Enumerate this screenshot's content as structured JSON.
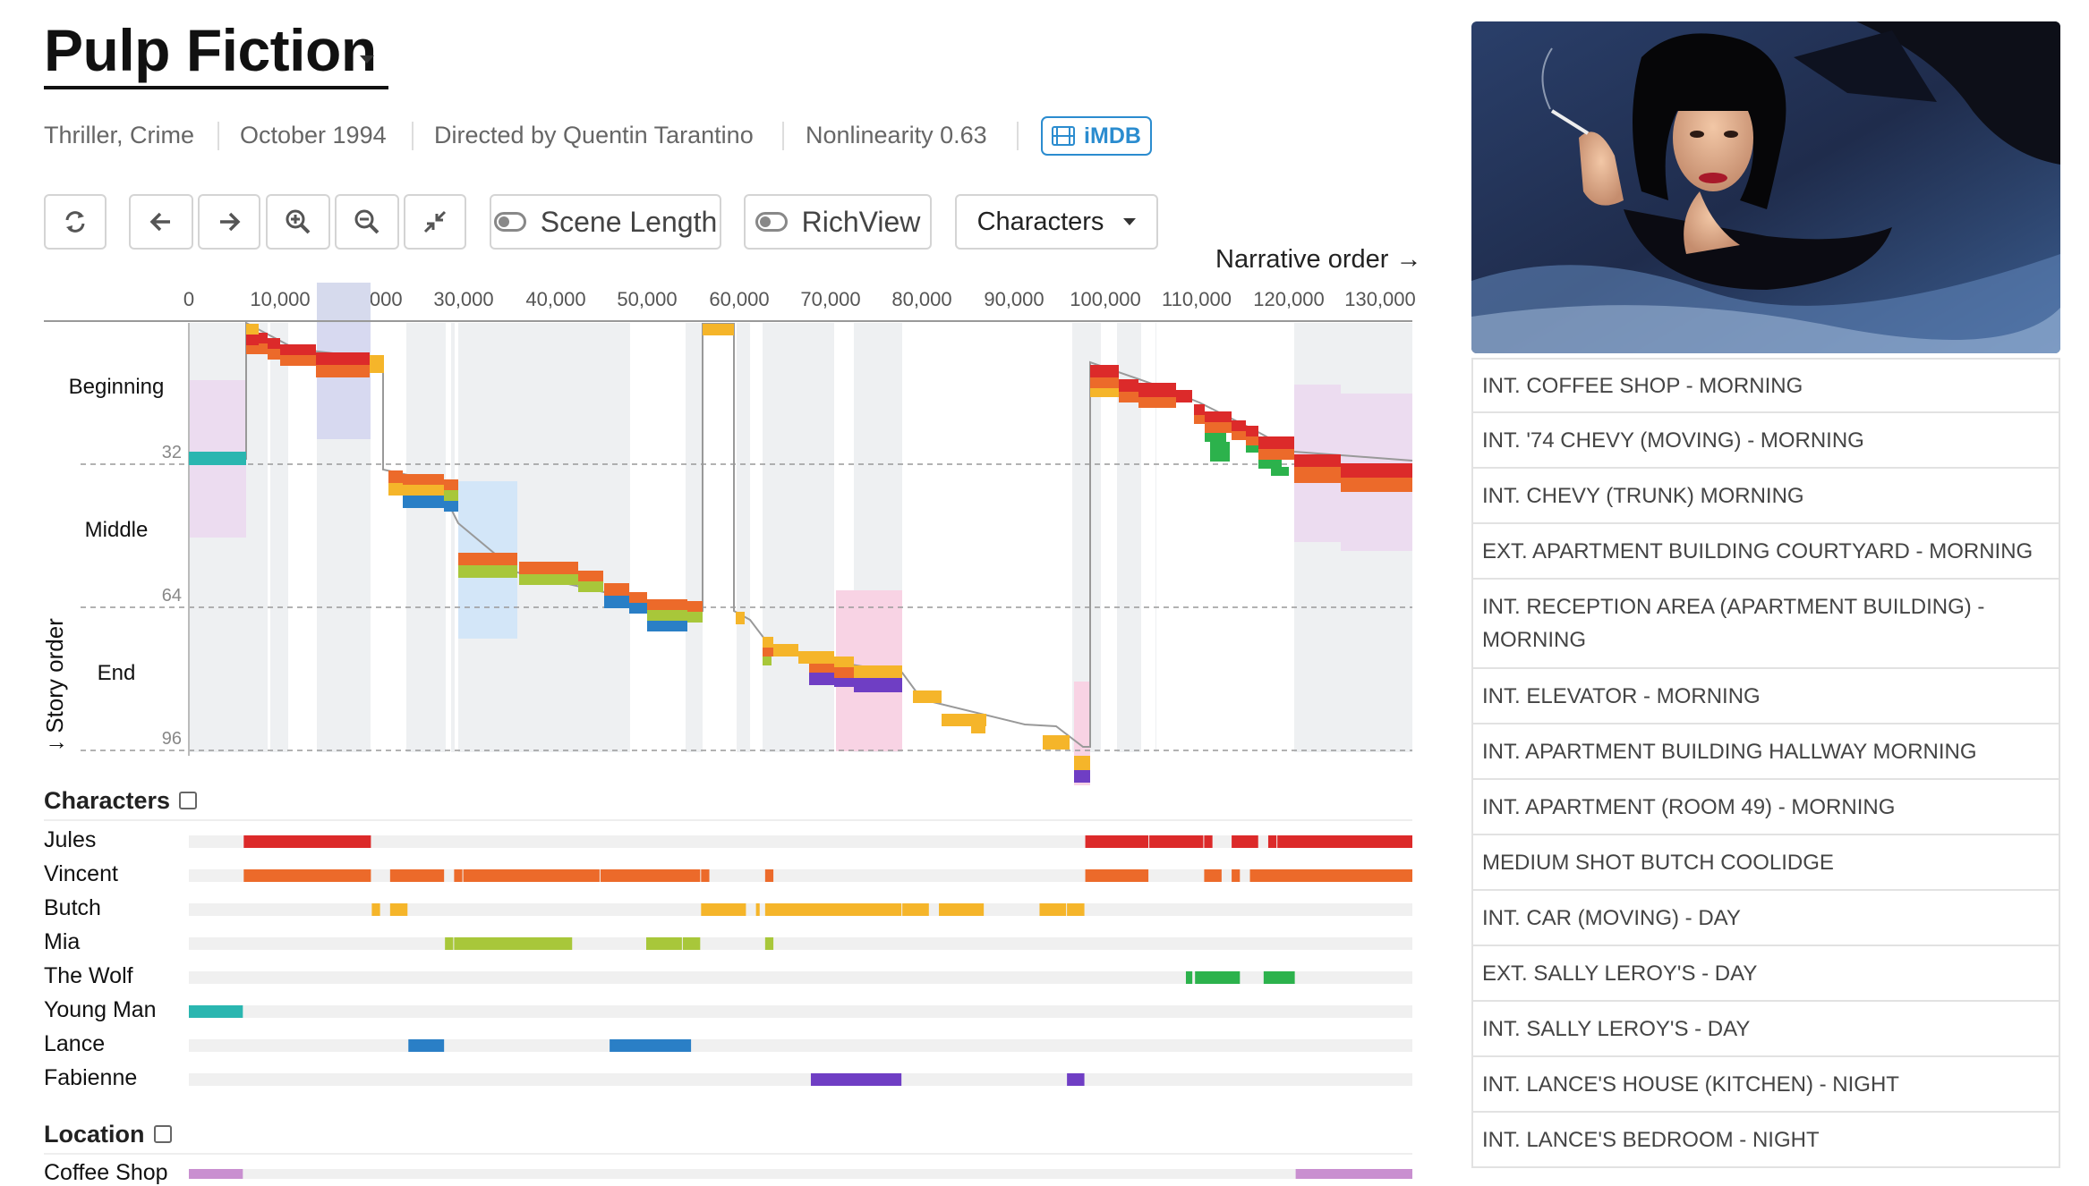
{
  "movie": {
    "title": "Pulp Fiction",
    "genres": "Thriller, Crime",
    "release": "October 1994",
    "director": "Directed by Quentin Tarantino",
    "nonlinearity": "Nonlinearity 0.63",
    "imdb_label": "iMDB"
  },
  "toolbar": {
    "scene_length_label": "Scene Length",
    "richview_label": "RichView",
    "characters_label": "Characters",
    "narrative_order_label": "Narrative order →"
  },
  "colors": {
    "Jules": "#dc2a2a",
    "Vincent": "#ec6a2a",
    "Butch": "#f5b52a",
    "Mia": "#a8c73a",
    "The Wolf": "#2cb24c",
    "Young Man": "#2ab6b0",
    "Lance": "#2a7fc6",
    "Fabienne": "#6f3ec4",
    "Coffee Shop": "#c98fd0"
  },
  "chart": {
    "x_ticks": [
      "0",
      "10,000",
      "20,000",
      "30,000",
      "40,000",
      "50,000",
      "60,000",
      "70,000",
      "80,000",
      "90,000",
      "100,000",
      "110,000",
      "120,000",
      "130,000"
    ],
    "y_ticks": [
      "32",
      "64",
      "96"
    ],
    "sections": [
      "Beginning",
      "Middle",
      "End"
    ],
    "y_axis_label": "↓ Story order"
  },
  "characters_section": {
    "label": "Characters",
    "rows": [
      {
        "name": "Jules",
        "spans": [
          [
            6,
            20
          ],
          [
            98,
            105
          ],
          [
            105,
            111
          ],
          [
            111,
            112
          ],
          [
            114,
            117
          ],
          [
            118,
            119
          ],
          [
            119,
            134
          ]
        ]
      },
      {
        "name": "Vincent",
        "spans": [
          [
            6,
            20
          ],
          [
            22,
            28
          ],
          [
            29,
            30
          ],
          [
            30,
            45
          ],
          [
            45,
            56
          ],
          [
            56,
            57
          ],
          [
            63,
            64
          ],
          [
            98,
            105
          ],
          [
            111,
            113
          ],
          [
            114,
            115
          ],
          [
            116,
            134
          ]
        ]
      },
      {
        "name": "Butch",
        "spans": [
          [
            20,
            21
          ],
          [
            22,
            24
          ],
          [
            56,
            61
          ],
          [
            62,
            62.5
          ],
          [
            63,
            78
          ],
          [
            78,
            81
          ],
          [
            82,
            87
          ],
          [
            93,
            96
          ],
          [
            96,
            98
          ]
        ]
      },
      {
        "name": "Mia",
        "spans": [
          [
            28,
            29
          ],
          [
            29,
            42
          ],
          [
            50,
            54
          ],
          [
            54,
            56
          ],
          [
            63,
            64
          ]
        ]
      },
      {
        "name": "The Wolf",
        "spans": [
          [
            109,
            109.8
          ],
          [
            110,
            115
          ],
          [
            117.5,
            121
          ]
        ]
      },
      {
        "name": "Young Man",
        "spans": [
          [
            0,
            6
          ]
        ]
      },
      {
        "name": "Lance",
        "spans": [
          [
            24,
            28
          ],
          [
            46,
            55
          ]
        ]
      },
      {
        "name": "Fabienne",
        "spans": [
          [
            68,
            78
          ],
          [
            96,
            98
          ]
        ]
      }
    ]
  },
  "location_section": {
    "label": "Location",
    "rows": [
      {
        "name": "Coffee Shop",
        "spans": [
          [
            0,
            6
          ],
          [
            121,
            134
          ]
        ]
      }
    ]
  },
  "scenes": [
    "INT. COFFEE SHOP - MORNING",
    "INT. '74 CHEVY (MOVING)  - MORNING",
    "INT. CHEVY (TRUNK)  MORNING",
    "EXT. APARTMENT BUILDING COURTYARD  - MORNING",
    "INT. RECEPTION AREA (APARTMENT BUILDING)  -",
    "MORNING",
    "INT. ELEVATOR -  MORNING",
    "INT. APARTMENT BUILDING HALLWAY  MORNING",
    "INT. APARTMENT (ROOM 49) - MORNING",
    "MEDIUM SHOT  BUTCH COOLIDGE",
    "INT. CAR (MOVING)  - DAY",
    "EXT. SALLY LEROY'S  - DAY",
    "INT. SALLY LEROY'S -  DAY",
    "INT. LANCE'S HOUSE (KITCHEN)  - NIGHT",
    "INT. LANCE'S BEDROOM - NIGHT"
  ],
  "icons": [
    "refresh-icon",
    "arrow-left-icon",
    "arrow-right-icon",
    "zoom-in-icon",
    "zoom-out-icon",
    "collapse-icon",
    "film-icon",
    "caret-down-icon"
  ]
}
